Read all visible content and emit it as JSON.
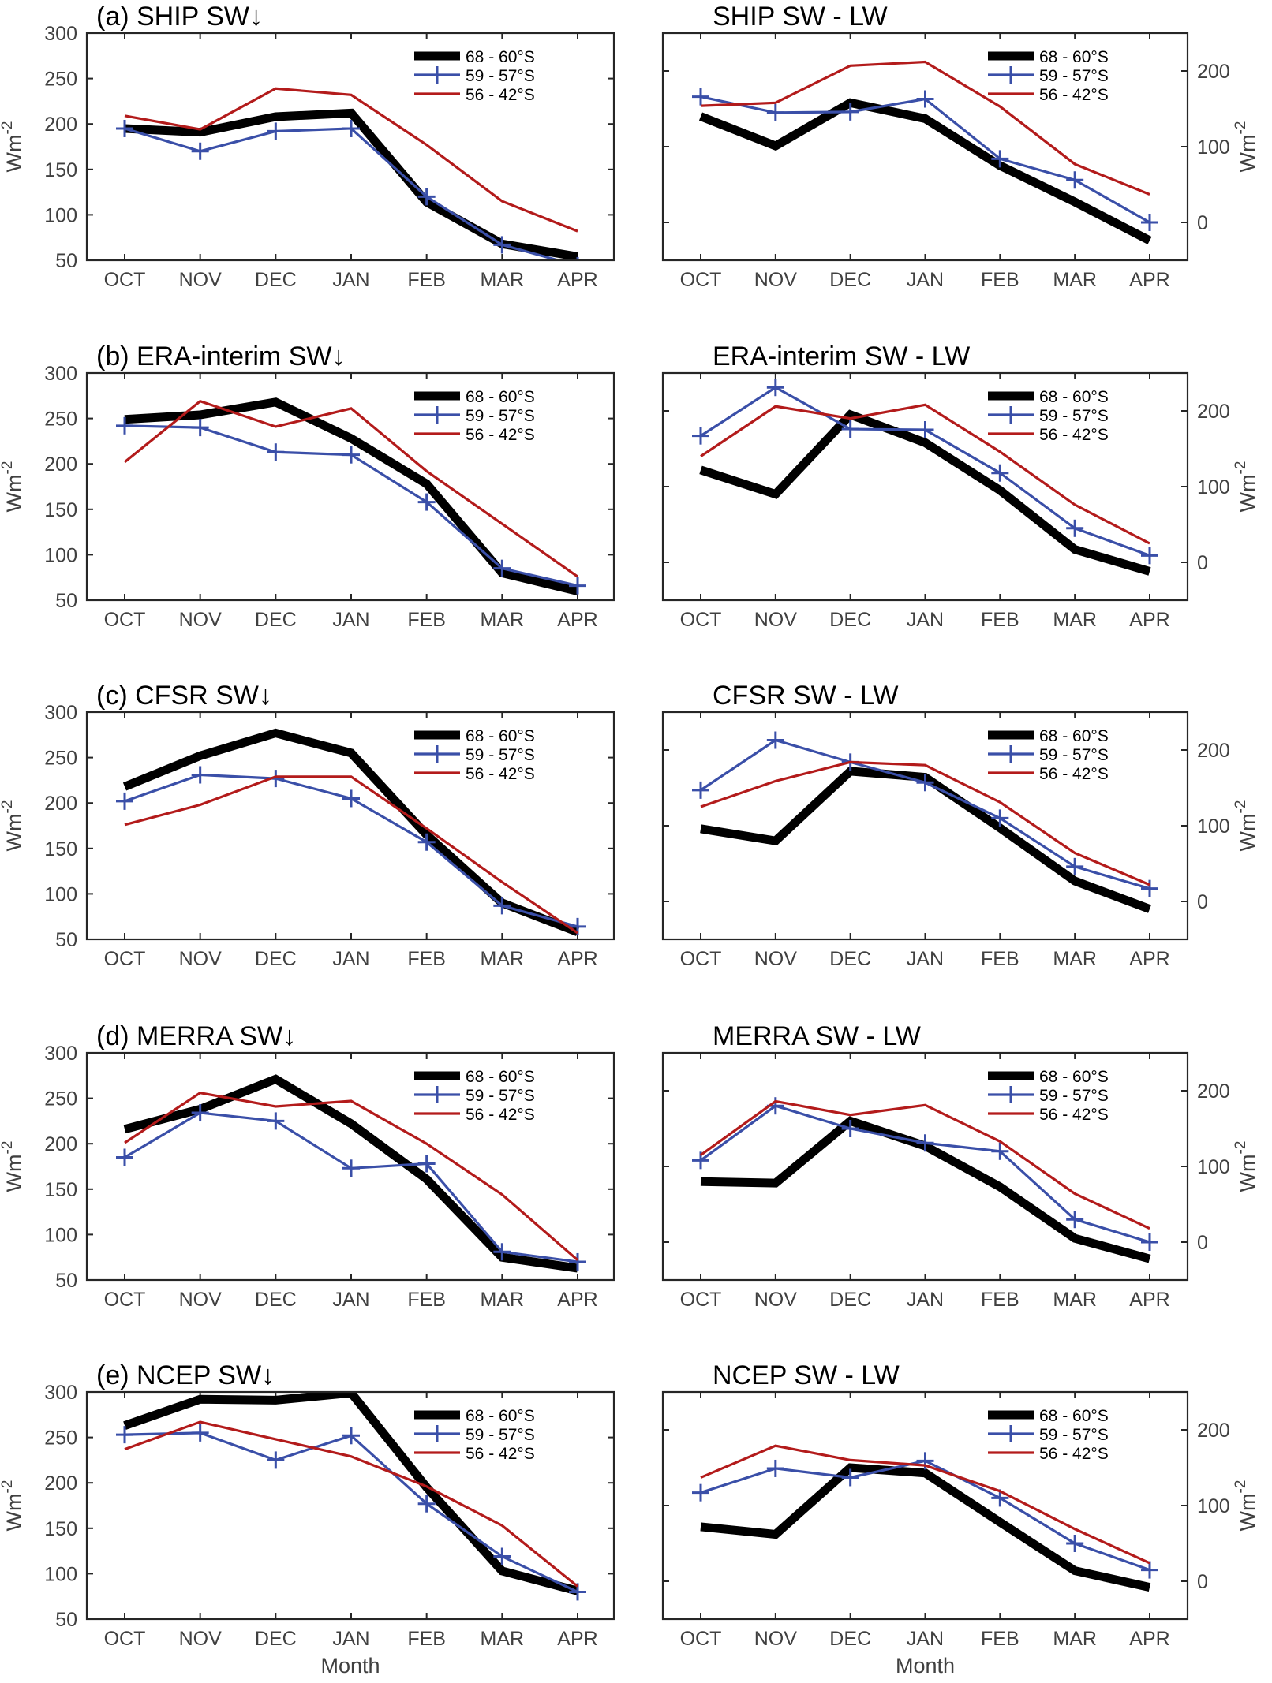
{
  "figure": {
    "x_axis_label": "Month",
    "y_axis_unit_base": "Wm",
    "y_axis_unit_exp": "-2"
  },
  "legend": [
    {
      "label": "68 - 60°S",
      "color": "#000000",
      "style": "thick"
    },
    {
      "label": "59 - 57°S",
      "color": "#3a4fa8",
      "style": "marker-plus"
    },
    {
      "label": "56 - 42°S",
      "color": "#b31b1b",
      "style": "thin"
    }
  ],
  "chart_data": [
    {
      "type": "line",
      "panel": "a-left",
      "title": "(a) SHIP      SW↓",
      "xlabel": "",
      "ylabel": "Wm-2",
      "ylim": [
        50,
        300
      ],
      "yticks": [
        50,
        100,
        150,
        200,
        250,
        300
      ],
      "ytick_side": "left",
      "categories": [
        "OCT",
        "NOV",
        "DEC",
        "JAN",
        "FEB",
        "MAR",
        "APR"
      ],
      "legend_position": "top-right",
      "series": [
        {
          "name": "68 - 60°S",
          "values": [
            195,
            191,
            208,
            212,
            114,
            68,
            54
          ]
        },
        {
          "name": "59 - 57°S",
          "values": [
            195,
            170,
            192,
            195,
            120,
            67,
            44
          ]
        },
        {
          "name": "56 - 42°S",
          "values": [
            209,
            194,
            239,
            232,
            177,
            115,
            82
          ]
        }
      ]
    },
    {
      "type": "line",
      "panel": "a-right",
      "title": "SHIP       SW - LW",
      "xlabel": "",
      "ylabel": "Wm-2",
      "ylim": [
        -50,
        250
      ],
      "yticks": [
        0,
        100,
        200
      ],
      "ytick_side": "right",
      "categories": [
        "OCT",
        "NOV",
        "DEC",
        "JAN",
        "FEB",
        "MAR",
        "APR"
      ],
      "legend_position": "top-right",
      "series": [
        {
          "name": "68 - 60°S",
          "values": [
            140,
            101,
            158,
            137,
            75,
            27,
            -24
          ]
        },
        {
          "name": "59 - 57°S",
          "values": [
            166,
            145,
            146,
            163,
            84,
            56,
            0
          ]
        },
        {
          "name": "56 - 42°S",
          "values": [
            154,
            158,
            207,
            212,
            153,
            77,
            37
          ]
        }
      ]
    },
    {
      "type": "line",
      "panel": "b-left",
      "title": "(b) ERA-interim    SW↓",
      "xlabel": "",
      "ylabel": "Wm-2",
      "ylim": [
        50,
        300
      ],
      "yticks": [
        50,
        100,
        150,
        200,
        250,
        300
      ],
      "ytick_side": "left",
      "categories": [
        "OCT",
        "NOV",
        "DEC",
        "JAN",
        "FEB",
        "MAR",
        "APR"
      ],
      "legend_position": "top-right",
      "series": [
        {
          "name": "68 - 60°S",
          "values": [
            249,
            254,
            268,
            228,
            178,
            80,
            60
          ]
        },
        {
          "name": "59 - 57°S",
          "values": [
            242,
            240,
            213,
            210,
            158,
            85,
            66
          ]
        },
        {
          "name": "56 - 42°S",
          "values": [
            202,
            269,
            241,
            261,
            192,
            134,
            76
          ]
        }
      ]
    },
    {
      "type": "line",
      "panel": "b-right",
      "title": "ERA-interim   SW - LW",
      "xlabel": "",
      "ylabel": "Wm-2",
      "ylim": [
        -50,
        250
      ],
      "yticks": [
        0,
        100,
        200
      ],
      "ytick_side": "right",
      "categories": [
        "OCT",
        "NOV",
        "DEC",
        "JAN",
        "FEB",
        "MAR",
        "APR"
      ],
      "legend_position": "top-right",
      "series": [
        {
          "name": "68 - 60°S",
          "values": [
            122,
            90,
            195,
            158,
            95,
            17,
            -12
          ]
        },
        {
          "name": "59 - 57°S",
          "values": [
            167,
            231,
            176,
            175,
            118,
            45,
            9
          ]
        },
        {
          "name": "56 - 42°S",
          "values": [
            140,
            206,
            190,
            208,
            146,
            76,
            25
          ]
        }
      ]
    },
    {
      "type": "line",
      "panel": "c-left",
      "title": "(c) CFSR     SW↓",
      "xlabel": "",
      "ylabel": "Wm-2",
      "ylim": [
        50,
        300
      ],
      "yticks": [
        50,
        100,
        150,
        200,
        250,
        300
      ],
      "ytick_side": "left",
      "categories": [
        "OCT",
        "NOV",
        "DEC",
        "JAN",
        "FEB",
        "MAR",
        "APR"
      ],
      "legend_position": "top-right",
      "series": [
        {
          "name": "68 - 60°S",
          "values": [
            218,
            252,
            277,
            255,
            165,
            90,
            58
          ]
        },
        {
          "name": "59 - 57°S",
          "values": [
            202,
            231,
            227,
            205,
            157,
            87,
            64
          ]
        },
        {
          "name": "56 - 42°S",
          "values": [
            176,
            198,
            229,
            229,
            172,
            113,
            57
          ]
        }
      ]
    },
    {
      "type": "line",
      "panel": "c-right",
      "title": "CFSR       SW - LW",
      "xlabel": "",
      "ylabel": "Wm-2",
      "ylim": [
        -50,
        250
      ],
      "yticks": [
        0,
        100,
        200
      ],
      "ytick_side": "right",
      "categories": [
        "OCT",
        "NOV",
        "DEC",
        "JAN",
        "FEB",
        "MAR",
        "APR"
      ],
      "legend_position": "top-right",
      "series": [
        {
          "name": "68 - 60°S",
          "values": [
            96,
            80,
            172,
            164,
            97,
            27,
            -10
          ]
        },
        {
          "name": "59 - 57°S",
          "values": [
            147,
            213,
            184,
            157,
            110,
            46,
            17
          ]
        },
        {
          "name": "56 - 42°S",
          "values": [
            125,
            159,
            184,
            180,
            131,
            64,
            22
          ]
        }
      ]
    },
    {
      "type": "line",
      "panel": "d-left",
      "title": "(d) MERRA  SW↓",
      "xlabel": "",
      "ylabel": "Wm-2",
      "ylim": [
        50,
        300
      ],
      "yticks": [
        50,
        100,
        150,
        200,
        250,
        300
      ],
      "ytick_side": "left",
      "categories": [
        "OCT",
        "NOV",
        "DEC",
        "JAN",
        "FEB",
        "MAR",
        "APR"
      ],
      "legend_position": "top-right",
      "series": [
        {
          "name": "68 - 60°S",
          "values": [
            216,
            238,
            271,
            222,
            161,
            75,
            63
          ]
        },
        {
          "name": "59 - 57°S",
          "values": [
            185,
            234,
            225,
            173,
            178,
            81,
            70
          ]
        },
        {
          "name": "56 - 42°S",
          "values": [
            201,
            256,
            241,
            247,
            200,
            144,
            72
          ]
        }
      ]
    },
    {
      "type": "line",
      "panel": "d-right",
      "title": "MERRA   SW - LW",
      "xlabel": "",
      "ylabel": "Wm-2",
      "ylim": [
        -50,
        250
      ],
      "yticks": [
        0,
        100,
        200
      ],
      "ytick_side": "right",
      "categories": [
        "OCT",
        "NOV",
        "DEC",
        "JAN",
        "FEB",
        "MAR",
        "APR"
      ],
      "legend_position": "top-right",
      "series": [
        {
          "name": "68 - 60°S",
          "values": [
            80,
            78,
            160,
            127,
            73,
            5,
            -22
          ]
        },
        {
          "name": "59 - 57°S",
          "values": [
            108,
            180,
            150,
            131,
            120,
            30,
            0
          ]
        },
        {
          "name": "56 - 42°S",
          "values": [
            115,
            186,
            168,
            181,
            133,
            64,
            18
          ]
        }
      ]
    },
    {
      "type": "line",
      "panel": "e-left",
      "title": "(e) NCEP     SW↓",
      "xlabel": "Month",
      "ylabel": "Wm-2",
      "ylim": [
        50,
        300
      ],
      "yticks": [
        50,
        100,
        150,
        200,
        250,
        300
      ],
      "ytick_side": "left",
      "categories": [
        "OCT",
        "NOV",
        "DEC",
        "JAN",
        "FEB",
        "MAR",
        "APR"
      ],
      "legend_position": "top-right",
      "series": [
        {
          "name": "68 - 60°S",
          "values": [
            263,
            292,
            291,
            299,
            195,
            103,
            81
          ]
        },
        {
          "name": "59 - 57°S",
          "values": [
            253,
            255,
            225,
            252,
            177,
            119,
            80
          ]
        },
        {
          "name": "56 - 42°S",
          "values": [
            237,
            267,
            248,
            229,
            196,
            153,
            86
          ]
        }
      ]
    },
    {
      "type": "line",
      "panel": "e-right",
      "title": "NCEP      SW - LW",
      "xlabel": "Month",
      "ylabel": "Wm-2",
      "ylim": [
        -50,
        250
      ],
      "yticks": [
        0,
        100,
        200
      ],
      "ytick_side": "right",
      "categories": [
        "OCT",
        "NOV",
        "DEC",
        "JAN",
        "FEB",
        "MAR",
        "APR"
      ],
      "legend_position": "top-right",
      "series": [
        {
          "name": "68 - 60°S",
          "values": [
            72,
            62,
            150,
            143,
            78,
            14,
            -8
          ]
        },
        {
          "name": "59 - 57°S",
          "values": [
            117,
            149,
            137,
            159,
            110,
            50,
            15
          ]
        },
        {
          "name": "56 - 42°S",
          "values": [
            137,
            179,
            160,
            153,
            119,
            69,
            24
          ]
        }
      ]
    }
  ]
}
